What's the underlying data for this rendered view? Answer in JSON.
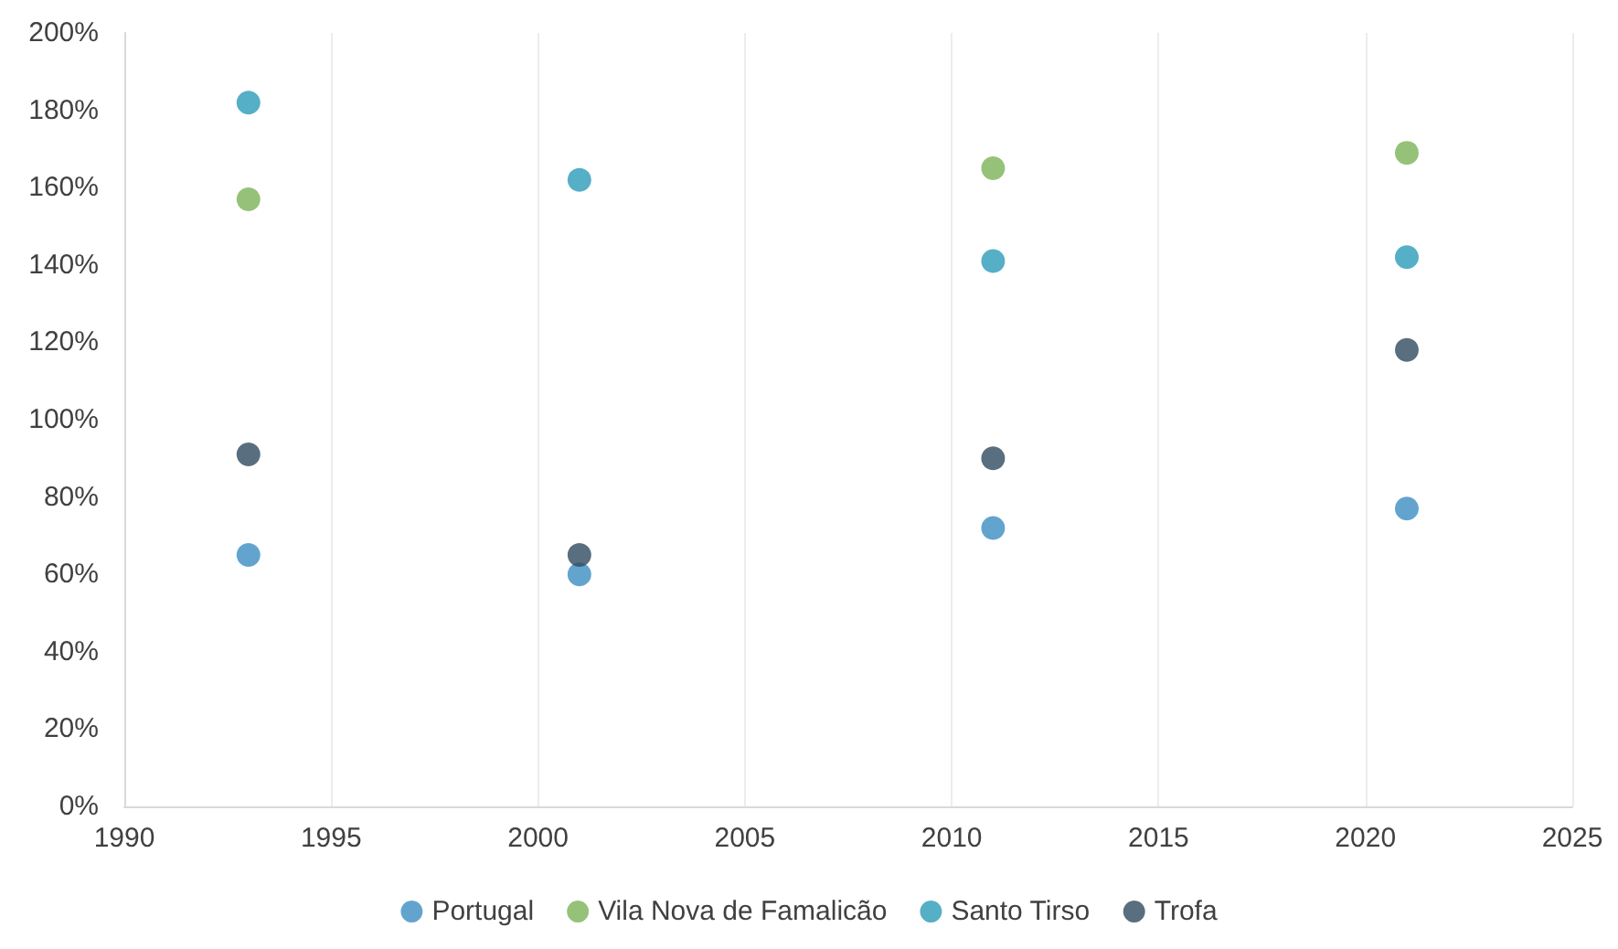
{
  "chart_data": {
    "type": "scatter",
    "x": [
      1993,
      2001,
      2011,
      2021
    ],
    "series": [
      {
        "name": "Portugal",
        "color": "#3b8dc2",
        "values": [
          65,
          60,
          72,
          77
        ]
      },
      {
        "name": "Vila Nova de Famalicão",
        "color": "#7ab356",
        "values": [
          157,
          null,
          165,
          169
        ]
      },
      {
        "name": "Santo Tirso",
        "color": "#2a9bb8",
        "values": [
          182,
          162,
          141,
          142
        ]
      },
      {
        "name": "Trofa",
        "color": "#2f4a5f",
        "values": [
          91,
          65,
          90,
          118
        ]
      }
    ],
    "xlim": [
      1990,
      2025
    ],
    "xticks": [
      1990,
      1995,
      2000,
      2005,
      2010,
      2015,
      2020,
      2025
    ],
    "ylim": [
      0,
      200
    ],
    "yticks": [
      {
        "value": 0,
        "label": "0%"
      },
      {
        "value": 20,
        "label": "20%"
      },
      {
        "value": 40,
        "label": "40%"
      },
      {
        "value": 60,
        "label": "60%"
      },
      {
        "value": 80,
        "label": "80%"
      },
      {
        "value": 100,
        "label": "100%"
      },
      {
        "value": 120,
        "label": "120%"
      },
      {
        "value": 140,
        "label": "140%"
      },
      {
        "value": 160,
        "label": "160%"
      },
      {
        "value": 180,
        "label": "180%"
      },
      {
        "value": 200,
        "label": "200%"
      }
    ],
    "grid": "x",
    "legend": "bottom",
    "marker": "circle"
  }
}
